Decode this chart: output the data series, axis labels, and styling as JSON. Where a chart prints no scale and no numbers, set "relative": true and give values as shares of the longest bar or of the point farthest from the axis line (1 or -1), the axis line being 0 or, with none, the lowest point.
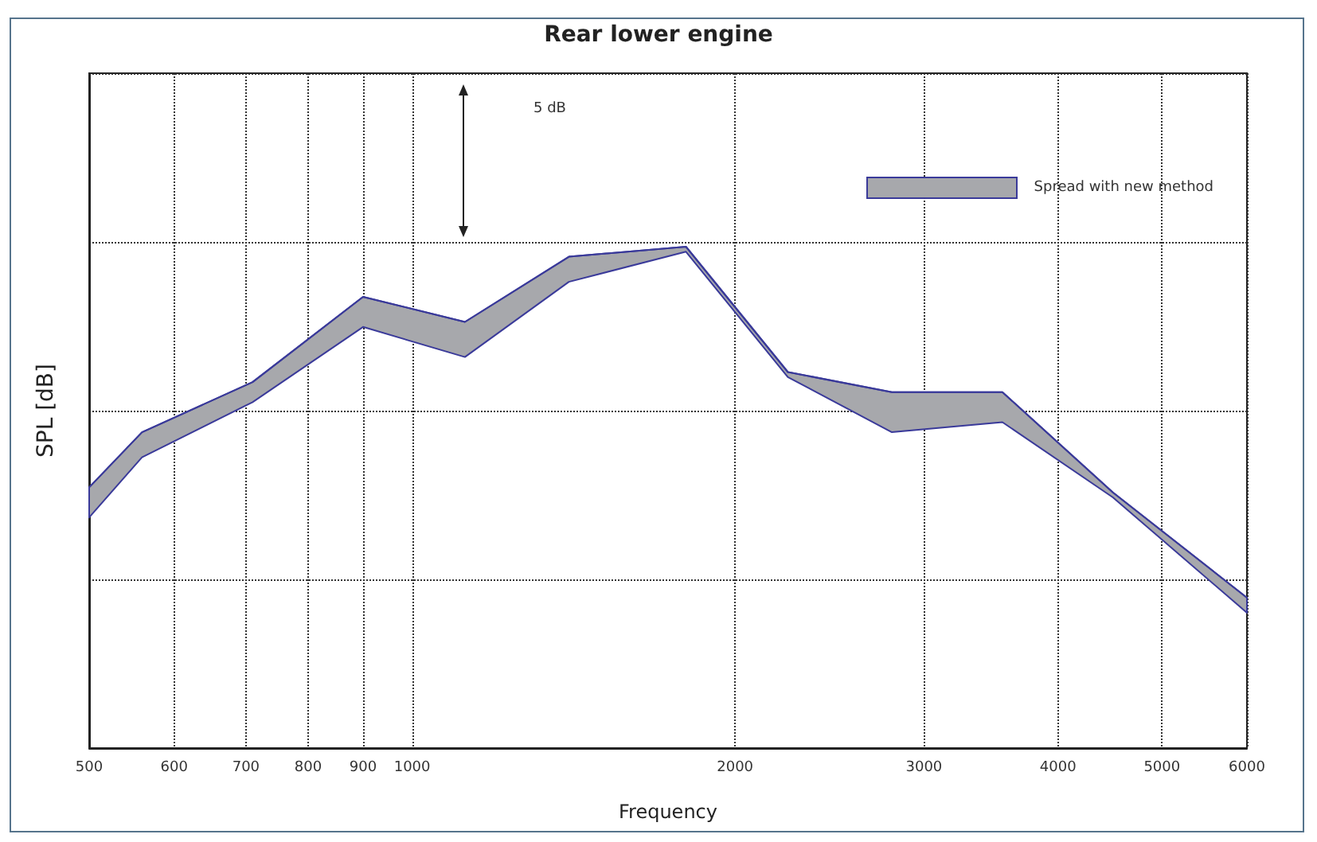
{
  "chart_data": {
    "type": "line",
    "title": "Rear lower engine",
    "xlabel": "Frequency",
    "ylabel": "SPL [dB]",
    "relative": true,
    "log": "x",
    "x": [
      500,
      560,
      710,
      900,
      1120,
      1400,
      1800,
      2240,
      2800,
      3550,
      4500,
      6000
    ],
    "xlim": [
      500,
      6000
    ],
    "xticks": [
      500,
      600,
      700,
      800,
      900,
      1000,
      2000,
      3000,
      4000,
      5000,
      6000
    ],
    "series": [
      {
        "name": "Spread with new method",
        "color": "#3a3a9a",
        "values": [
          0.52,
          0.63,
          0.73,
          0.9,
          0.85,
          0.98,
          1.0,
          0.75,
          0.71,
          0.71,
          0.51,
          0.3
        ],
        "lower": [
          0.46,
          0.58,
          0.69,
          0.84,
          0.78,
          0.93,
          0.99,
          0.74,
          0.63,
          0.65,
          0.5,
          0.27
        ],
        "upper": [
          0.52,
          0.63,
          0.73,
          0.9,
          0.85,
          0.98,
          1.0,
          0.75,
          0.71,
          0.71,
          0.51,
          0.3
        ]
      }
    ],
    "annotations": [
      "5 dB"
    ],
    "grid": true,
    "legend": "top right"
  }
}
